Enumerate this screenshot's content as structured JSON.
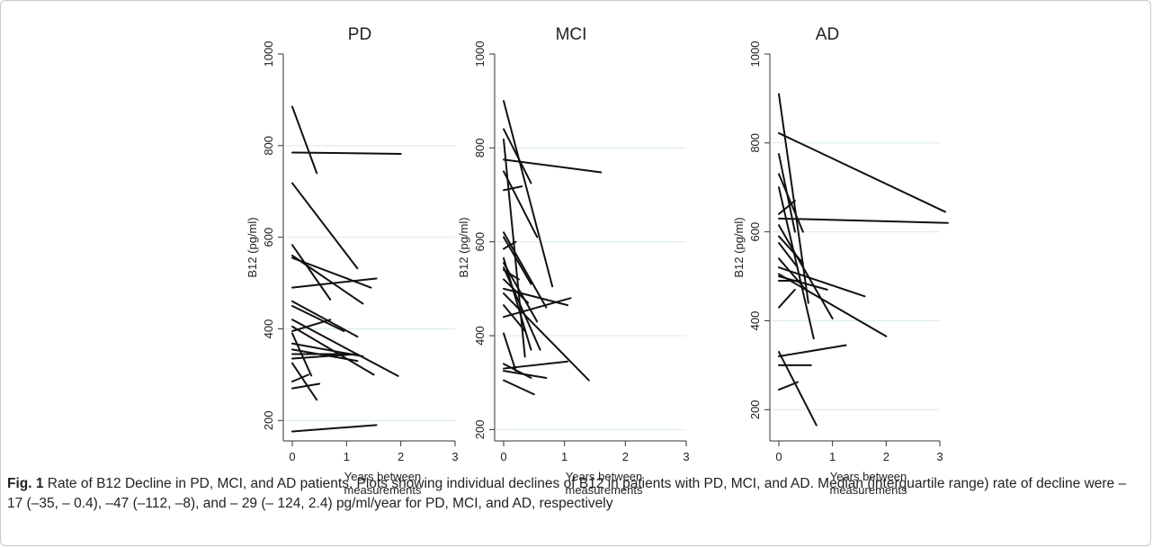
{
  "caption": {
    "label": "Fig. 1",
    "text": "Rate of B12 Decline in PD, MCI, and AD patients. Plots showing individual declines of B12 in patients with PD, MCI, and AD. Median (interquartile range) rate of decline were – 17 (–35, – 0.4), –47 (–112, –8), and – 29 (– 124, 2.4) pg/ml/year for PD, MCI, and AD, respectively"
  },
  "colors": {
    "line": "#111111",
    "grid": "#d6ece8",
    "axis": "#333333"
  },
  "chart_data": [
    {
      "type": "line",
      "title": "PD",
      "xlabel": "Years between measurements",
      "ylabel": "B12 (pg/ml)",
      "xlim": [
        0,
        3
      ],
      "ylim": [
        175,
        1000
      ],
      "xticks": [
        "0",
        "1",
        "2",
        "3"
      ],
      "yticks": [
        "200",
        "400",
        "600",
        "800",
        "1000"
      ],
      "gridlines": [
        200,
        400,
        600,
        800
      ],
      "series": [
        {
          "x": [
            0,
            0.45
          ],
          "y": [
            885,
            740
          ]
        },
        {
          "x": [
            0,
            2.0
          ],
          "y": [
            785,
            782
          ]
        },
        {
          "x": [
            0,
            1.2
          ],
          "y": [
            718,
            532
          ]
        },
        {
          "x": [
            0,
            0.7
          ],
          "y": [
            583,
            464
          ]
        },
        {
          "x": [
            0,
            1.45
          ],
          "y": [
            555,
            490
          ]
        },
        {
          "x": [
            0,
            1.3
          ],
          "y": [
            560,
            455
          ]
        },
        {
          "x": [
            0,
            1.55
          ],
          "y": [
            490,
            510
          ]
        },
        {
          "x": [
            0,
            0.95
          ],
          "y": [
            450,
            395
          ]
        },
        {
          "x": [
            0,
            1.2
          ],
          "y": [
            460,
            383
          ]
        },
        {
          "x": [
            0,
            1.95
          ],
          "y": [
            420,
            297
          ]
        },
        {
          "x": [
            0,
            1.5
          ],
          "y": [
            405,
            300
          ]
        },
        {
          "x": [
            0,
            0.7
          ],
          "y": [
            395,
            420
          ]
        },
        {
          "x": [
            0,
            1.3
          ],
          "y": [
            368,
            340
          ]
        },
        {
          "x": [
            0,
            1.2
          ],
          "y": [
            355,
            330
          ]
        },
        {
          "x": [
            0,
            1.2
          ],
          "y": [
            335,
            345
          ]
        },
        {
          "x": [
            0,
            1.05
          ],
          "y": [
            345,
            345
          ]
        },
        {
          "x": [
            0,
            0.45
          ],
          "y": [
            325,
            245
          ]
        },
        {
          "x": [
            0,
            0.35
          ],
          "y": [
            390,
            298
          ]
        },
        {
          "x": [
            0,
            0.5
          ],
          "y": [
            270,
            280
          ]
        },
        {
          "x": [
            0,
            0.3
          ],
          "y": [
            285,
            300
          ]
        },
        {
          "x": [
            0,
            1.55
          ],
          "y": [
            176,
            190
          ]
        }
      ]
    },
    {
      "type": "line",
      "title": "MCI",
      "xlabel": "Years between measurements",
      "ylabel": "B12 (pg/ml)",
      "xlim": [
        0,
        3
      ],
      "ylim": [
        195,
        1000
      ],
      "xticks": [
        "0",
        "1",
        "2",
        "3"
      ],
      "yticks": [
        "200",
        "400",
        "600",
        "800",
        "1000"
      ],
      "gridlines": [
        200,
        400,
        600,
        800
      ],
      "series": [
        {
          "x": [
            0,
            0.8
          ],
          "y": [
            900,
            505
          ]
        },
        {
          "x": [
            0,
            0.45
          ],
          "y": [
            840,
            725
          ]
        },
        {
          "x": [
            0,
            1.6
          ],
          "y": [
            775,
            748
          ]
        },
        {
          "x": [
            0,
            0.35
          ],
          "y": [
            818,
            355
          ]
        },
        {
          "x": [
            0,
            0.3
          ],
          "y": [
            710,
            718
          ]
        },
        {
          "x": [
            0,
            0.55
          ],
          "y": [
            750,
            610
          ]
        },
        {
          "x": [
            0,
            0.7
          ],
          "y": [
            620,
            460
          ]
        },
        {
          "x": [
            0,
            0.45
          ],
          "y": [
            610,
            510
          ]
        },
        {
          "x": [
            0,
            0.2
          ],
          "y": [
            585,
            600
          ]
        },
        {
          "x": [
            0,
            0.45
          ],
          "y": [
            565,
            370
          ]
        },
        {
          "x": [
            0,
            0.55
          ],
          "y": [
            555,
            430
          ]
        },
        {
          "x": [
            0,
            0.6
          ],
          "y": [
            545,
            370
          ]
        },
        {
          "x": [
            0,
            0.25
          ],
          "y": [
            540,
            520
          ]
        },
        {
          "x": [
            0,
            0.4
          ],
          "y": [
            520,
            470
          ]
        },
        {
          "x": [
            0,
            1.4
          ],
          "y": [
            490,
            305
          ]
        },
        {
          "x": [
            0,
            1.1
          ],
          "y": [
            440,
            480
          ]
        },
        {
          "x": [
            0,
            1.05
          ],
          "y": [
            500,
            465
          ]
        },
        {
          "x": [
            0,
            0.35
          ],
          "y": [
            465,
            410
          ]
        },
        {
          "x": [
            0,
            0.2
          ],
          "y": [
            405,
            325
          ]
        },
        {
          "x": [
            0,
            1.05
          ],
          "y": [
            330,
            345
          ]
        },
        {
          "x": [
            0,
            0.7
          ],
          "y": [
            325,
            310
          ]
        },
        {
          "x": [
            0,
            0.45
          ],
          "y": [
            340,
            310
          ]
        },
        {
          "x": [
            0,
            0.5
          ],
          "y": [
            305,
            275
          ]
        }
      ]
    },
    {
      "type": "line",
      "title": "AD",
      "xlabel": "Years between measurements",
      "ylabel": "B12 (pg/ml)",
      "xlim": [
        0,
        3
      ],
      "ylim": [
        150,
        1000
      ],
      "xticks": [
        "0",
        "1",
        "2",
        "3"
      ],
      "yticks": [
        "200",
        "400",
        "600",
        "800",
        "1000"
      ],
      "gridlines": [
        200,
        400,
        600,
        800
      ],
      "series": [
        {
          "x": [
            0,
            0.55
          ],
          "y": [
            910,
            440
          ]
        },
        {
          "x": [
            0,
            3.1
          ],
          "y": [
            822,
            645
          ]
        },
        {
          "x": [
            0,
            0.3
          ],
          "y": [
            775,
            600
          ]
        },
        {
          "x": [
            0,
            0.45
          ],
          "y": [
            730,
            600
          ]
        },
        {
          "x": [
            0,
            0.65
          ],
          "y": [
            700,
            360
          ]
        },
        {
          "x": [
            0,
            3.15
          ],
          "y": [
            630,
            620
          ]
        },
        {
          "x": [
            0,
            0.3
          ],
          "y": [
            640,
            670
          ]
        },
        {
          "x": [
            0,
            1.0
          ],
          "y": [
            615,
            405
          ]
        },
        {
          "x": [
            0,
            0.45
          ],
          "y": [
            590,
            530
          ]
        },
        {
          "x": [
            0,
            0.35
          ],
          "y": [
            575,
            520
          ]
        },
        {
          "x": [
            0,
            0.5
          ],
          "y": [
            540,
            470
          ]
        },
        {
          "x": [
            0,
            1.6
          ],
          "y": [
            520,
            455
          ]
        },
        {
          "x": [
            0,
            2.0
          ],
          "y": [
            505,
            365
          ]
        },
        {
          "x": [
            0,
            0.9
          ],
          "y": [
            500,
            470
          ]
        },
        {
          "x": [
            0,
            0.4
          ],
          "y": [
            490,
            490
          ]
        },
        {
          "x": [
            0,
            0.3
          ],
          "y": [
            430,
            470
          ]
        },
        {
          "x": [
            0,
            1.25
          ],
          "y": [
            320,
            345
          ]
        },
        {
          "x": [
            0,
            0.6
          ],
          "y": [
            300,
            300
          ]
        },
        {
          "x": [
            0,
            0.7
          ],
          "y": [
            330,
            165
          ]
        },
        {
          "x": [
            0,
            0.35
          ],
          "y": [
            245,
            262
          ]
        }
      ]
    }
  ]
}
